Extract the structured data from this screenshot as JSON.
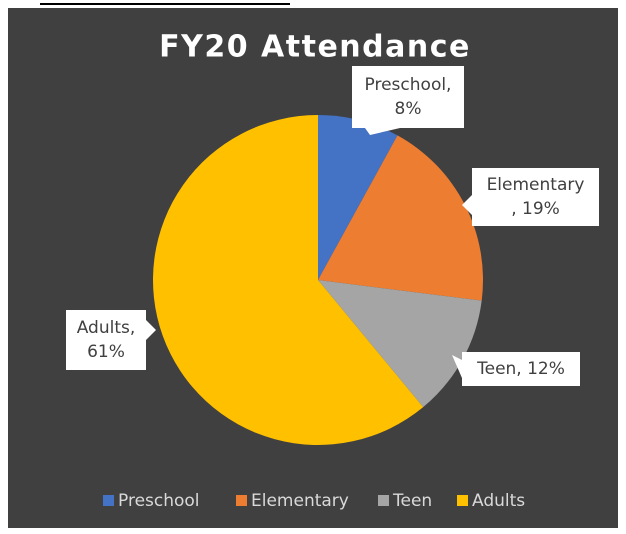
{
  "chart_data": {
    "type": "pie",
    "title": "FY20 Attendance",
    "categories": [
      "Preschool",
      "Elementary",
      "Teen",
      "Adults"
    ],
    "values": [
      8,
      19,
      12,
      61
    ],
    "value_labels": [
      [
        "Preschool,",
        "8%"
      ],
      [
        "Elementary",
        ", 19%"
      ],
      [
        "Teen, 12%"
      ],
      [
        "Adults,",
        "61%"
      ]
    ],
    "colors": [
      "#4472c4",
      "#ed7d31",
      "#a5a5a5",
      "#ffc000"
    ],
    "legend": "bottom"
  }
}
